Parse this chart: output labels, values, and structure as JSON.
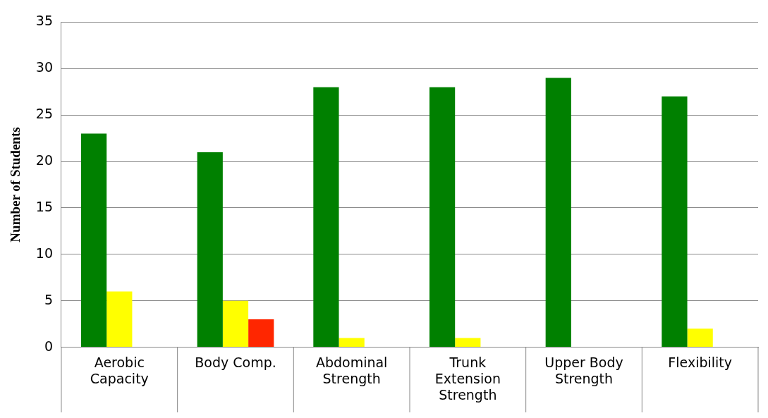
{
  "chart_data": {
    "type": "bar",
    "ylabel": "Number of Students",
    "categories": [
      "Aerobic Capacity",
      "Body Comp.",
      "Abdominal Strength",
      "Trunk Extension Strength",
      "Upper Body Strength",
      "Flexibility"
    ],
    "series": [
      {
        "color": "#008000",
        "values": [
          23,
          21,
          28,
          28,
          29,
          27
        ]
      },
      {
        "color": "#ffff00",
        "values": [
          6,
          5,
          1,
          1,
          0,
          2
        ]
      },
      {
        "color": "#ff2600",
        "values": [
          0,
          3,
          0,
          0,
          0,
          0
        ]
      }
    ],
    "ylim": [
      0,
      35
    ],
    "yticks": [
      0,
      5,
      10,
      15,
      20,
      25,
      30,
      35
    ],
    "grid": "y"
  }
}
